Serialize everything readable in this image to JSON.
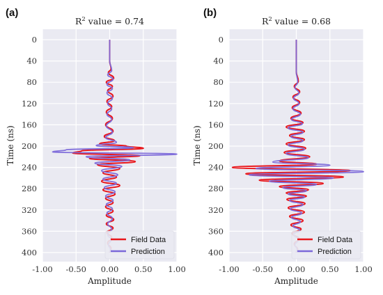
{
  "chart_data": [
    {
      "type": "line",
      "panel_label": "(a)",
      "title_prefix": "R",
      "title_sup": "2",
      "title_suffix": " value = 0.74",
      "xlabel": "Amplitude",
      "ylabel": "Time (ns)",
      "xlim": [
        -1.0,
        1.0
      ],
      "ylim": [
        400,
        0
      ],
      "xticks": [
        -1.0,
        -0.5,
        0.0,
        0.5,
        1.0
      ],
      "xtick_labels": [
        "-1.00",
        "-0.50",
        "0.00",
        "0.50",
        "1.00"
      ],
      "yticks": [
        0,
        40,
        80,
        120,
        160,
        200,
        240,
        280,
        320,
        360,
        400
      ],
      "ytick_labels": [
        "0",
        "40",
        "80",
        "120",
        "160",
        "200",
        "240",
        "280",
        "320",
        "360",
        "400"
      ],
      "grid": true,
      "legend_position": "bottom-right",
      "series": [
        {
          "name": "Field Data",
          "color": "#e8161b",
          "points": [
            [
              0,
              0
            ],
            [
              0,
              40
            ],
            [
              0.02,
              55
            ],
            [
              -0.02,
              62
            ],
            [
              0.06,
              72
            ],
            [
              -0.05,
              80
            ],
            [
              0.04,
              88
            ],
            [
              -0.03,
              96
            ],
            [
              0.05,
              106
            ],
            [
              -0.04,
              116
            ],
            [
              0.03,
              126
            ],
            [
              -0.05,
              136
            ],
            [
              0.04,
              148
            ],
            [
              -0.06,
              160
            ],
            [
              0.05,
              172
            ],
            [
              -0.08,
              182
            ],
            [
              0.07,
              190
            ],
            [
              -0.15,
              196
            ],
            [
              0.25,
              200
            ],
            [
              0.5,
              204
            ],
            [
              -0.42,
              209
            ],
            [
              -0.55,
              213
            ],
            [
              0.45,
              218
            ],
            [
              -0.3,
              223
            ],
            [
              0.38,
              229
            ],
            [
              -0.18,
              235
            ],
            [
              0.15,
              242
            ],
            [
              -0.1,
              250
            ],
            [
              0.1,
              258
            ],
            [
              -0.12,
              266
            ],
            [
              0.15,
              274
            ],
            [
              -0.1,
              282
            ],
            [
              0.08,
              290
            ],
            [
              -0.06,
              298
            ],
            [
              0.05,
              306
            ],
            [
              -0.06,
              314
            ],
            [
              0.05,
              322
            ],
            [
              -0.05,
              330
            ],
            [
              0.06,
              338
            ],
            [
              -0.05,
              346
            ],
            [
              0.05,
              354
            ],
            [
              -0.04,
              362
            ],
            [
              0.03,
              372
            ],
            [
              -0.03,
              382
            ],
            [
              0.02,
              392
            ],
            [
              0,
              400
            ]
          ]
        },
        {
          "name": "Prediction",
          "color": "#7b68d9",
          "points": [
            [
              0,
              0
            ],
            [
              0,
              40
            ],
            [
              0.03,
              58
            ],
            [
              -0.03,
              66
            ],
            [
              0.05,
              74
            ],
            [
              -0.04,
              84
            ],
            [
              0.04,
              92
            ],
            [
              -0.04,
              100
            ],
            [
              0.04,
              110
            ],
            [
              -0.03,
              120
            ],
            [
              0.03,
              130
            ],
            [
              -0.04,
              140
            ],
            [
              0.03,
              150
            ],
            [
              -0.05,
              162
            ],
            [
              0.04,
              174
            ],
            [
              -0.06,
              184
            ],
            [
              0.1,
              193
            ],
            [
              -0.2,
              199
            ],
            [
              0.35,
              203
            ],
            [
              -0.65,
              207
            ],
            [
              -0.85,
              211
            ],
            [
              1.0,
              215
            ],
            [
              -0.35,
              220
            ],
            [
              0.3,
              226
            ],
            [
              -0.22,
              232
            ],
            [
              0.18,
              238
            ],
            [
              -0.12,
              246
            ],
            [
              0.12,
              254
            ],
            [
              -0.1,
              262
            ],
            [
              0.1,
              270
            ],
            [
              -0.08,
              278
            ],
            [
              0.08,
              286
            ],
            [
              -0.06,
              294
            ],
            [
              0.05,
              302
            ],
            [
              -0.05,
              310
            ],
            [
              0.04,
              318
            ],
            [
              -0.04,
              326
            ],
            [
              0.04,
              336
            ],
            [
              -0.03,
              346
            ],
            [
              0.03,
              356
            ],
            [
              -0.03,
              366
            ],
            [
              0.02,
              376
            ],
            [
              -0.02,
              386
            ],
            [
              0.01,
              394
            ],
            [
              0,
              400
            ]
          ]
        }
      ]
    },
    {
      "type": "line",
      "panel_label": "(b)",
      "title_prefix": "R",
      "title_sup": "2",
      "title_suffix": " value = 0.68",
      "xlabel": "Amplitude",
      "ylabel": "Time (ns)",
      "xlim": [
        -1.0,
        1.0
      ],
      "ylim": [
        400,
        0
      ],
      "xticks": [
        -1.0,
        -0.5,
        0.0,
        0.5,
        1.0
      ],
      "xtick_labels": [
        "-1.00",
        "-0.50",
        "0.00",
        "0.50",
        "1.00"
      ],
      "yticks": [
        0,
        40,
        80,
        120,
        160,
        200,
        240,
        280,
        320,
        360,
        400
      ],
      "ytick_labels": [
        "0",
        "40",
        "80",
        "120",
        "160",
        "200",
        "240",
        "280",
        "320",
        "360",
        "400"
      ],
      "grid": true,
      "legend_position": "bottom-right",
      "series": [
        {
          "name": "Field Data",
          "color": "#e8161b",
          "points": [
            [
              0,
              0
            ],
            [
              0,
              60
            ],
            [
              0.03,
              78
            ],
            [
              -0.03,
              88
            ],
            [
              0.05,
              98
            ],
            [
              -0.05,
              108
            ],
            [
              0.05,
              118
            ],
            [
              -0.06,
              128
            ],
            [
              0.07,
              138
            ],
            [
              -0.08,
              148
            ],
            [
              0.1,
              156
            ],
            [
              -0.15,
              164
            ],
            [
              0.12,
              172
            ],
            [
              -0.1,
              180
            ],
            [
              0.12,
              188
            ],
            [
              -0.15,
              196
            ],
            [
              0.14,
              204
            ],
            [
              -0.18,
              212
            ],
            [
              0.2,
              220
            ],
            [
              -0.25,
              228
            ],
            [
              0.3,
              234
            ],
            [
              -0.95,
              240
            ],
            [
              0.8,
              246
            ],
            [
              -0.75,
              252
            ],
            [
              0.7,
              258
            ],
            [
              -0.55,
              264
            ],
            [
              0.4,
              270
            ],
            [
              -0.25,
              276
            ],
            [
              0.18,
              282
            ],
            [
              -0.15,
              288
            ],
            [
              0.15,
              294
            ],
            [
              -0.14,
              300
            ],
            [
              0.13,
              308
            ],
            [
              -0.12,
              316
            ],
            [
              0.12,
              324
            ],
            [
              -0.1,
              332
            ],
            [
              0.1,
              340
            ],
            [
              -0.08,
              348
            ],
            [
              0.07,
              356
            ],
            [
              -0.06,
              364
            ],
            [
              0.04,
              374
            ],
            [
              -0.03,
              384
            ],
            [
              0.02,
              394
            ],
            [
              0,
              400
            ]
          ]
        },
        {
          "name": "Prediction",
          "color": "#7b68d9",
          "points": [
            [
              0,
              0
            ],
            [
              0,
              60
            ],
            [
              0.02,
              80
            ],
            [
              -0.02,
              90
            ],
            [
              0.04,
              100
            ],
            [
              -0.04,
              110
            ],
            [
              0.04,
              120
            ],
            [
              -0.05,
              130
            ],
            [
              0.06,
              140
            ],
            [
              -0.07,
              150
            ],
            [
              0.09,
              158
            ],
            [
              -0.12,
              166
            ],
            [
              0.1,
              174
            ],
            [
              -0.08,
              182
            ],
            [
              0.1,
              190
            ],
            [
              -0.12,
              198
            ],
            [
              0.12,
              206
            ],
            [
              -0.15,
              214
            ],
            [
              0.18,
              222
            ],
            [
              -0.35,
              230
            ],
            [
              0.5,
              236
            ],
            [
              -0.6,
              242
            ],
            [
              1.0,
              248
            ],
            [
              -0.7,
              254
            ],
            [
              0.55,
              260
            ],
            [
              -0.4,
              266
            ],
            [
              0.3,
              272
            ],
            [
              -0.2,
              278
            ],
            [
              0.15,
              284
            ],
            [
              -0.12,
              290
            ],
            [
              0.12,
              296
            ],
            [
              -0.1,
              302
            ],
            [
              0.1,
              310
            ],
            [
              -0.09,
              318
            ],
            [
              0.08,
              326
            ],
            [
              -0.07,
              334
            ],
            [
              0.06,
              342
            ],
            [
              -0.05,
              350
            ],
            [
              0.05,
              358
            ],
            [
              -0.04,
              366
            ],
            [
              0.03,
              376
            ],
            [
              -0.02,
              386
            ],
            [
              0.01,
              394
            ],
            [
              0,
              400
            ]
          ]
        }
      ]
    }
  ]
}
